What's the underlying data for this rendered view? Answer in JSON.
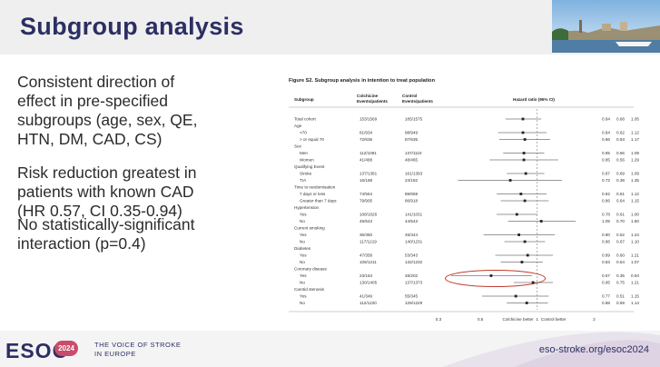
{
  "slide": {
    "title": "Subgroup analysis",
    "bullets": [
      {
        "lines": [
          "Consistent direction of",
          "effect in pre-specified",
          "subgroups (age, sex, QE,",
          "HTN, DM, CAD, CS)"
        ]
      },
      {
        "lines": [
          "Risk reduction greatest in",
          "patients with known CAD",
          "(HR 0.57, CI 0.35-0.94)"
        ]
      },
      {
        "lines": [
          "No statistically-significant",
          "interaction (p=0.4)"
        ]
      }
    ]
  },
  "figure": {
    "caption": "Figure S2. Subgroup analysis in intention to treat population",
    "columns": {
      "subgroup": "Subgroup",
      "colchicine": [
        "Colchicine",
        "Events/patients"
      ],
      "control": [
        "Control",
        "Events/patients"
      ],
      "hr": "Hazard ratio (95% CI)"
    },
    "axis_ticks": [
      "0.3",
      "0.5",
      "1",
      "2"
    ],
    "favours_left": "Colchicine better",
    "favours_right": "Control better"
  },
  "chart_data": {
    "type": "forest",
    "title": "Figure S2. Subgroup analysis in intention to treat population",
    "x_scale": "log",
    "xlim": [
      0.3,
      2.2
    ],
    "reference_line": 1,
    "rows": [
      {
        "label": "Total cohort",
        "indent": false,
        "colchicine": "153/1569",
        "control": "185/1575",
        "hr": 0.84,
        "lo": 0.68,
        "hi": 1.05
      },
      {
        "label": "Age",
        "header": true
      },
      {
        "label": "<70",
        "indent": true,
        "colchicine": "81/934",
        "control": "98/949",
        "hr": 0.84,
        "lo": 0.62,
        "hi": 1.12
      },
      {
        "label": "> or equal 70",
        "indent": true,
        "colchicine": "72/635",
        "control": "87/635",
        "hr": 0.86,
        "lo": 0.63,
        "hi": 1.17
      },
      {
        "label": "Sex",
        "header": true
      },
      {
        "label": "Men",
        "indent": true,
        "colchicine": "112/1081",
        "control": "137/1110",
        "hr": 0.85,
        "lo": 0.66,
        "hi": 1.09
      },
      {
        "label": "Women",
        "indent": true,
        "colchicine": "41/488",
        "control": "48/465",
        "hr": 0.85,
        "lo": 0.56,
        "hi": 1.29
      },
      {
        "label": "Qualifying Event",
        "header": true
      },
      {
        "label": "Stroke",
        "indent": true,
        "colchicine": "137/1381",
        "control": "161/1393",
        "hr": 0.87,
        "lo": 0.69,
        "hi": 1.09
      },
      {
        "label": "TIA",
        "indent": true,
        "colchicine": "16/188",
        "control": "24/182",
        "hr": 0.72,
        "lo": 0.38,
        "hi": 1.35
      },
      {
        "label": "Time to randomisation",
        "header": true
      },
      {
        "label": "7 days or less",
        "indent": true,
        "colchicine": "74/564",
        "control": "89/659",
        "hr": 0.82,
        "lo": 0.61,
        "hi": 1.12
      },
      {
        "label": "Greater than 7 days",
        "indent": true,
        "colchicine": "79/905",
        "control": "86/918",
        "hr": 0.86,
        "lo": 0.64,
        "hi": 1.15
      },
      {
        "label": "Hypertension",
        "header": true
      },
      {
        "label": "Yes",
        "indent": true,
        "colchicine": "108/1026",
        "control": "141/1031",
        "hr": 0.78,
        "lo": 0.61,
        "hi": 1.0
      },
      {
        "label": "No",
        "indent": true,
        "colchicine": "45/543",
        "control": "44/543",
        "hr": 1.05,
        "lo": 0.7,
        "hi": 1.6
      },
      {
        "label": "Current smoking",
        "header": true
      },
      {
        "label": "Yes",
        "indent": true,
        "colchicine": "36/350",
        "control": "45/344",
        "hr": 0.8,
        "lo": 0.52,
        "hi": 1.24
      },
      {
        "label": "No",
        "indent": true,
        "colchicine": "117/1219",
        "control": "140/1231",
        "hr": 0.86,
        "lo": 0.67,
        "hi": 1.1
      },
      {
        "label": "Diabetes",
        "header": true
      },
      {
        "label": "Yes",
        "indent": true,
        "colchicine": "47/358",
        "control": "53/343",
        "hr": 0.89,
        "lo": 0.6,
        "hi": 1.21
      },
      {
        "label": "No",
        "indent": true,
        "colchicine": "106/1211",
        "control": "132/1232",
        "hr": 0.83,
        "lo": 0.64,
        "hi": 1.07
      },
      {
        "label": "Coronary disease",
        "header": true
      },
      {
        "label": "Yes",
        "indent": true,
        "colchicine": "23/164",
        "control": "48/202",
        "hr": 0.57,
        "lo": 0.35,
        "hi": 0.94,
        "highlight": true
      },
      {
        "label": "No",
        "indent": true,
        "colchicine": "130/1405",
        "control": "137/1373",
        "hr": 0.95,
        "lo": 0.75,
        "hi": 1.21
      },
      {
        "label": "Carotid stenosis",
        "header": true
      },
      {
        "label": "Yes",
        "indent": true,
        "colchicine": "41/349",
        "control": "55/345",
        "hr": 0.77,
        "lo": 0.51,
        "hi": 1.15
      },
      {
        "label": "No",
        "indent": true,
        "colchicine": "112/1220",
        "control": "129/1229",
        "hr": 0.88,
        "lo": 0.69,
        "hi": 1.14
      }
    ]
  },
  "footer": {
    "logo": "ESOC",
    "badge": "2024",
    "tagline": [
      "THE VOICE OF STROKE",
      "IN EUROPE"
    ],
    "url": "eso-stroke.org/esoc2024"
  },
  "colors": {
    "title": "#2c2f63",
    "highlight": "#c0392b",
    "badge": "#c94c6a"
  }
}
